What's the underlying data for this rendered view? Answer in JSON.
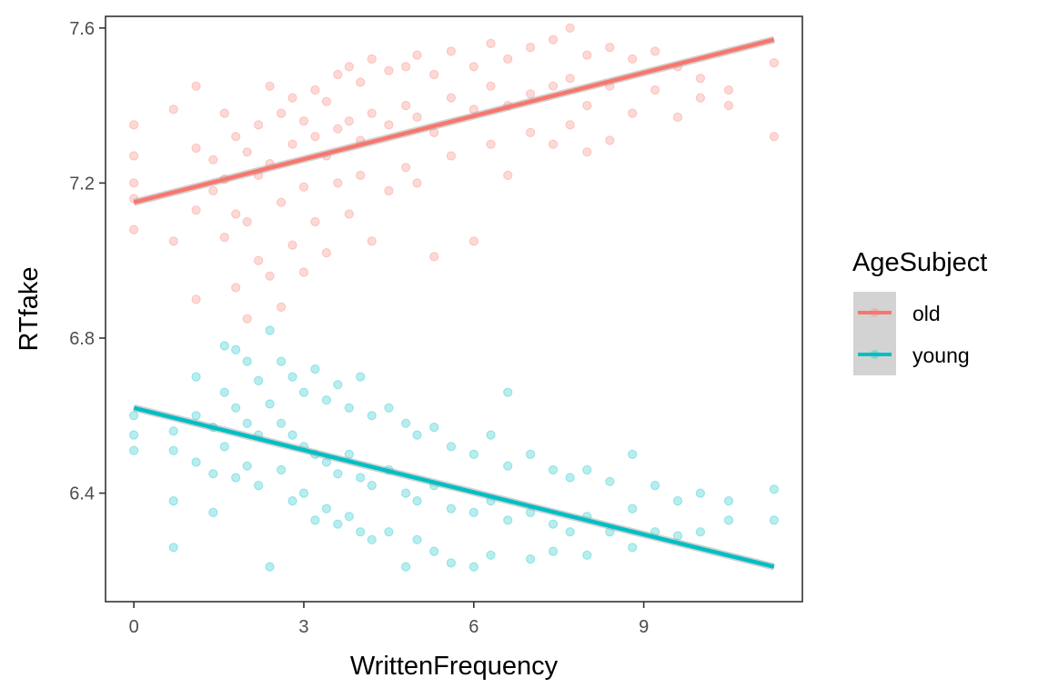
{
  "chart_data": {
    "type": "scatter",
    "title": "",
    "xlabel": "WrittenFrequency",
    "ylabel": "RTfake",
    "xlim": [
      -0.5,
      11.8
    ],
    "ylim": [
      6.12,
      7.63
    ],
    "xticks": [
      0,
      3,
      6,
      9
    ],
    "yticks": [
      6.4,
      6.8,
      7.2,
      7.6
    ],
    "xtick_labels": [
      "0",
      "3",
      "6",
      "9"
    ],
    "ytick_labels": [
      "6.4",
      "6.8",
      "7.2",
      "7.6"
    ],
    "grid": false,
    "legend": {
      "title": "AgeSubject",
      "position": "right",
      "entries": [
        "old",
        "young"
      ]
    },
    "series": [
      {
        "name": "old",
        "color": "#F8766D",
        "fit_line": {
          "x": [
            0,
            11.3
          ],
          "y": [
            7.15,
            7.57
          ]
        },
        "points": [
          [
            0,
            7.35
          ],
          [
            0,
            7.27
          ],
          [
            0,
            7.2
          ],
          [
            0,
            7.08
          ],
          [
            0,
            7.16
          ],
          [
            0.7,
            7.39
          ],
          [
            0.7,
            7.05
          ],
          [
            1.1,
            7.45
          ],
          [
            1.1,
            7.29
          ],
          [
            1.1,
            7.13
          ],
          [
            1.1,
            6.9
          ],
          [
            1.4,
            7.26
          ],
          [
            1.4,
            7.18
          ],
          [
            1.6,
            7.38
          ],
          [
            1.6,
            7.21
          ],
          [
            1.6,
            7.06
          ],
          [
            1.8,
            7.32
          ],
          [
            1.8,
            7.12
          ],
          [
            1.8,
            6.93
          ],
          [
            2.0,
            7.28
          ],
          [
            2.0,
            7.1
          ],
          [
            2.0,
            6.85
          ],
          [
            2.2,
            7.35
          ],
          [
            2.2,
            7.22
          ],
          [
            2.2,
            7.0
          ],
          [
            2.4,
            7.45
          ],
          [
            2.4,
            7.25
          ],
          [
            2.4,
            6.96
          ],
          [
            2.6,
            7.38
          ],
          [
            2.6,
            7.15
          ],
          [
            2.6,
            6.88
          ],
          [
            2.8,
            7.42
          ],
          [
            2.8,
            7.3
          ],
          [
            2.8,
            7.04
          ],
          [
            3.0,
            7.36
          ],
          [
            3.0,
            7.19
          ],
          [
            3.0,
            6.97
          ],
          [
            3.2,
            7.44
          ],
          [
            3.2,
            7.32
          ],
          [
            3.2,
            7.1
          ],
          [
            3.4,
            7.41
          ],
          [
            3.4,
            7.27
          ],
          [
            3.4,
            7.02
          ],
          [
            3.6,
            7.48
          ],
          [
            3.6,
            7.34
          ],
          [
            3.6,
            7.2
          ],
          [
            3.8,
            7.5
          ],
          [
            3.8,
            7.36
          ],
          [
            3.8,
            7.12
          ],
          [
            4.0,
            7.46
          ],
          [
            4.0,
            7.31
          ],
          [
            4.0,
            7.22
          ],
          [
            4.2,
            7.52
          ],
          [
            4.2,
            7.38
          ],
          [
            4.2,
            7.05
          ],
          [
            4.5,
            7.49
          ],
          [
            4.5,
            7.35
          ],
          [
            4.5,
            7.18
          ],
          [
            4.8,
            7.5
          ],
          [
            4.8,
            7.4
          ],
          [
            4.8,
            7.24
          ],
          [
            5.0,
            7.53
          ],
          [
            5.0,
            7.37
          ],
          [
            5.0,
            7.2
          ],
          [
            5.3,
            7.48
          ],
          [
            5.3,
            7.33
          ],
          [
            5.3,
            7.01
          ],
          [
            5.6,
            7.54
          ],
          [
            5.6,
            7.42
          ],
          [
            5.6,
            7.27
          ],
          [
            6.0,
            7.5
          ],
          [
            6.0,
            7.39
          ],
          [
            6.0,
            7.05
          ],
          [
            6.3,
            7.56
          ],
          [
            6.3,
            7.45
          ],
          [
            6.3,
            7.3
          ],
          [
            6.6,
            7.52
          ],
          [
            6.6,
            7.4
          ],
          [
            6.6,
            7.22
          ],
          [
            7.0,
            7.55
          ],
          [
            7.0,
            7.43
          ],
          [
            7.0,
            7.33
          ],
          [
            7.4,
            7.57
          ],
          [
            7.4,
            7.45
          ],
          [
            7.4,
            7.3
          ],
          [
            7.7,
            7.6
          ],
          [
            7.7,
            7.47
          ],
          [
            7.7,
            7.35
          ],
          [
            8.0,
            7.53
          ],
          [
            8.0,
            7.4
          ],
          [
            8.0,
            7.28
          ],
          [
            8.4,
            7.55
          ],
          [
            8.4,
            7.45
          ],
          [
            8.4,
            7.31
          ],
          [
            8.8,
            7.52
          ],
          [
            8.8,
            7.38
          ],
          [
            9.2,
            7.54
          ],
          [
            9.2,
            7.44
          ],
          [
            9.6,
            7.5
          ],
          [
            9.6,
            7.37
          ],
          [
            10.0,
            7.47
          ],
          [
            10.0,
            7.42
          ],
          [
            10.5,
            7.44
          ],
          [
            10.5,
            7.4
          ],
          [
            11.3,
            7.51
          ],
          [
            11.3,
            7.32
          ]
        ]
      },
      {
        "name": "young",
        "color": "#00BFC4",
        "fit_line": {
          "x": [
            0,
            11.3
          ],
          "y": [
            6.62,
            6.21
          ]
        },
        "points": [
          [
            0,
            6.6
          ],
          [
            0,
            6.55
          ],
          [
            0,
            6.51
          ],
          [
            0.7,
            6.56
          ],
          [
            0.7,
            6.51
          ],
          [
            0.7,
            6.38
          ],
          [
            0.7,
            6.26
          ],
          [
            1.1,
            6.7
          ],
          [
            1.1,
            6.6
          ],
          [
            1.1,
            6.48
          ],
          [
            1.4,
            6.57
          ],
          [
            1.4,
            6.45
          ],
          [
            1.4,
            6.35
          ],
          [
            1.6,
            6.78
          ],
          [
            1.6,
            6.66
          ],
          [
            1.6,
            6.52
          ],
          [
            1.8,
            6.77
          ],
          [
            1.8,
            6.62
          ],
          [
            1.8,
            6.44
          ],
          [
            2.0,
            6.74
          ],
          [
            2.0,
            6.58
          ],
          [
            2.0,
            6.47
          ],
          [
            2.2,
            6.69
          ],
          [
            2.2,
            6.55
          ],
          [
            2.2,
            6.42
          ],
          [
            2.4,
            6.82
          ],
          [
            2.4,
            6.63
          ],
          [
            2.4,
            6.21
          ],
          [
            2.6,
            6.74
          ],
          [
            2.6,
            6.58
          ],
          [
            2.6,
            6.46
          ],
          [
            2.8,
            6.7
          ],
          [
            2.8,
            6.55
          ],
          [
            2.8,
            6.38
          ],
          [
            3.0,
            6.66
          ],
          [
            3.0,
            6.52
          ],
          [
            3.0,
            6.4
          ],
          [
            3.2,
            6.72
          ],
          [
            3.2,
            6.5
          ],
          [
            3.2,
            6.33
          ],
          [
            3.4,
            6.64
          ],
          [
            3.4,
            6.48
          ],
          [
            3.4,
            6.36
          ],
          [
            3.6,
            6.68
          ],
          [
            3.6,
            6.45
          ],
          [
            3.6,
            6.32
          ],
          [
            3.8,
            6.62
          ],
          [
            3.8,
            6.5
          ],
          [
            3.8,
            6.34
          ],
          [
            4.0,
            6.7
          ],
          [
            4.0,
            6.44
          ],
          [
            4.0,
            6.3
          ],
          [
            4.2,
            6.6
          ],
          [
            4.2,
            6.42
          ],
          [
            4.2,
            6.28
          ],
          [
            4.5,
            6.62
          ],
          [
            4.5,
            6.46
          ],
          [
            4.5,
            6.3
          ],
          [
            4.8,
            6.58
          ],
          [
            4.8,
            6.4
          ],
          [
            4.8,
            6.21
          ],
          [
            5.0,
            6.55
          ],
          [
            5.0,
            6.38
          ],
          [
            5.0,
            6.28
          ],
          [
            5.3,
            6.57
          ],
          [
            5.3,
            6.42
          ],
          [
            5.3,
            6.25
          ],
          [
            5.6,
            6.52
          ],
          [
            5.6,
            6.36
          ],
          [
            5.6,
            6.22
          ],
          [
            6.0,
            6.5
          ],
          [
            6.0,
            6.35
          ],
          [
            6.0,
            6.21
          ],
          [
            6.3,
            6.55
          ],
          [
            6.3,
            6.38
          ],
          [
            6.3,
            6.24
          ],
          [
            6.6,
            6.47
          ],
          [
            6.6,
            6.33
          ],
          [
            6.6,
            6.66
          ],
          [
            7.0,
            6.5
          ],
          [
            7.0,
            6.35
          ],
          [
            7.0,
            6.23
          ],
          [
            7.4,
            6.46
          ],
          [
            7.4,
            6.32
          ],
          [
            7.4,
            6.25
          ],
          [
            7.7,
            6.44
          ],
          [
            7.7,
            6.3
          ],
          [
            8.0,
            6.46
          ],
          [
            8.0,
            6.34
          ],
          [
            8.0,
            6.24
          ],
          [
            8.4,
            6.43
          ],
          [
            8.4,
            6.3
          ],
          [
            8.8,
            6.5
          ],
          [
            8.8,
            6.36
          ],
          [
            8.8,
            6.26
          ],
          [
            9.2,
            6.42
          ],
          [
            9.2,
            6.3
          ],
          [
            9.6,
            6.38
          ],
          [
            9.6,
            6.29
          ],
          [
            10.0,
            6.4
          ],
          [
            10.0,
            6.3
          ],
          [
            10.5,
            6.38
          ],
          [
            10.5,
            6.33
          ],
          [
            11.3,
            6.41
          ],
          [
            11.3,
            6.33
          ]
        ]
      }
    ]
  }
}
